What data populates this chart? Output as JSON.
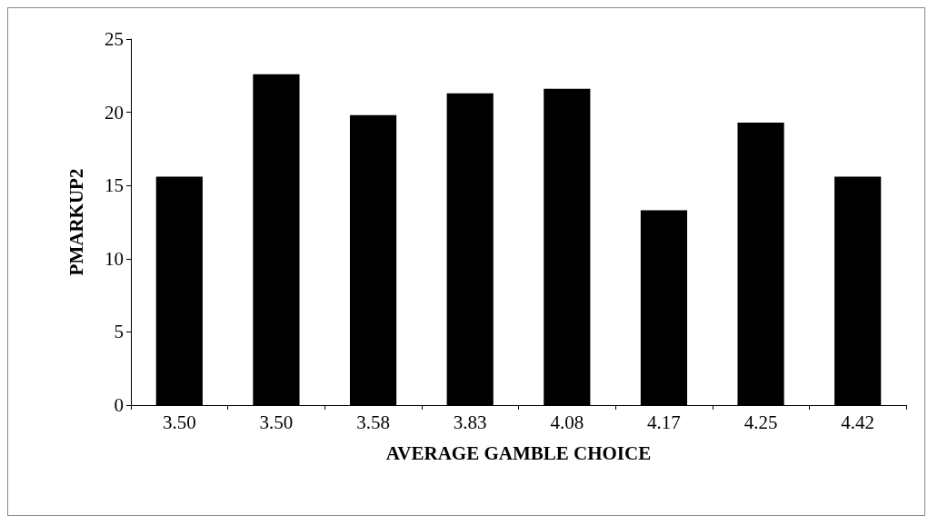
{
  "chart_data": {
    "type": "bar",
    "xlabel": "AVERAGE GAMBLE CHOICE",
    "ylabel": "PMARKUP2",
    "categories": [
      "3.50",
      "3.50",
      "3.58",
      "3.83",
      "4.08",
      "4.17",
      "4.25",
      "4.42"
    ],
    "values": [
      15.6,
      22.6,
      19.8,
      21.3,
      21.6,
      13.3,
      19.3,
      15.6
    ],
    "color": "#000000",
    "ylim": [
      0,
      25
    ],
    "yticks": [
      0,
      5,
      10,
      15,
      20,
      25
    ],
    "grid": false
  }
}
